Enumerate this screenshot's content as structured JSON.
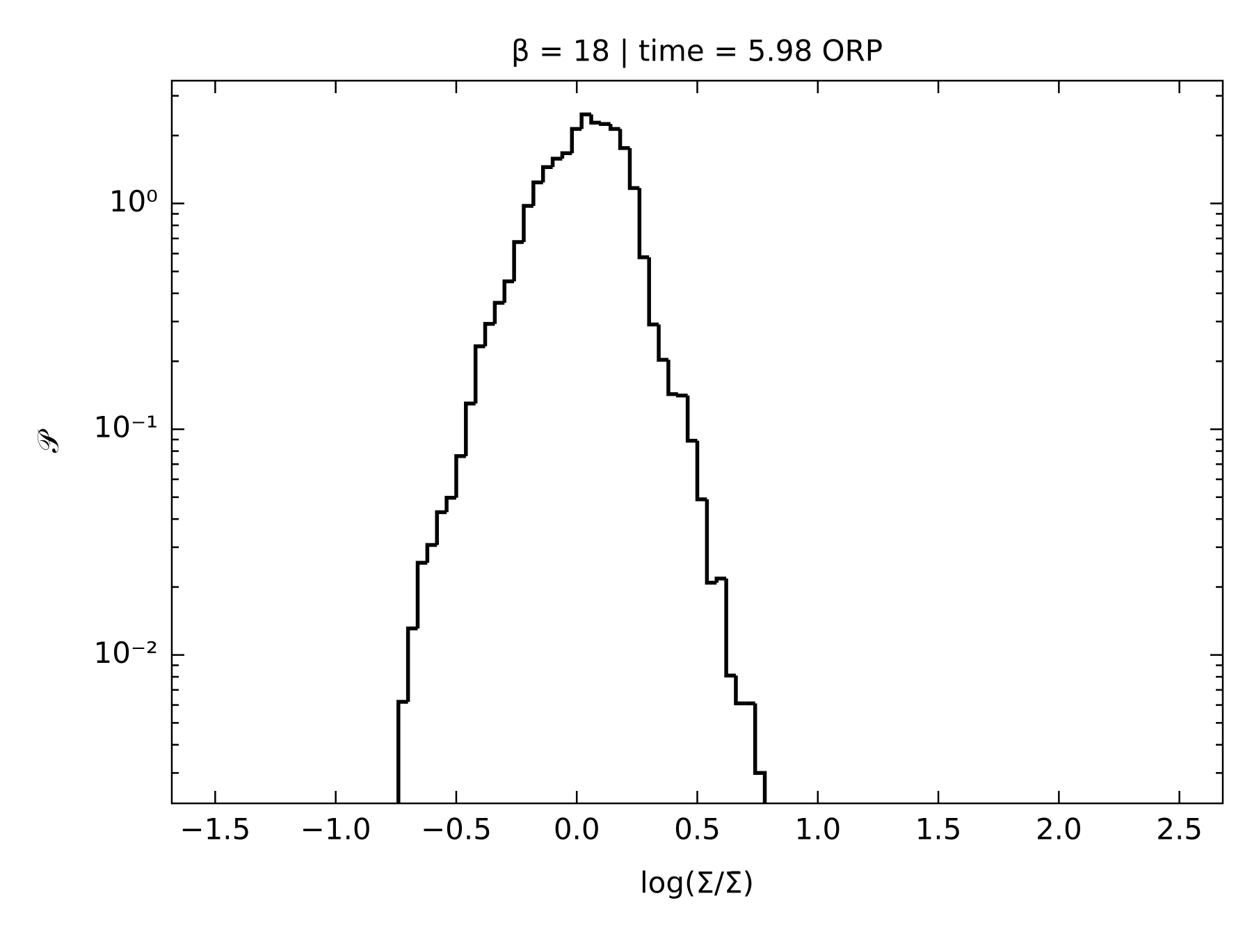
{
  "chart_data": {
    "type": "histogram",
    "title": "β = 18 | time = 5.98 ORP",
    "xlabel": "log(Σ/Σ̄)",
    "ylabel": "𝒫",
    "color": "#000000",
    "log_y": true,
    "bins": [
      -0.74,
      -0.7,
      -0.66,
      -0.62,
      -0.58,
      -0.54,
      -0.5,
      -0.46,
      -0.42,
      -0.38,
      -0.34,
      -0.3,
      -0.26,
      -0.22,
      -0.18,
      -0.14,
      -0.1,
      -0.06,
      -0.02,
      0.02,
      0.06,
      0.1,
      0.14,
      0.18,
      0.22,
      0.26,
      0.3,
      0.34,
      0.38,
      0.42,
      0.46,
      0.5,
      0.54,
      0.58,
      0.62,
      0.66,
      0.7,
      0.74,
      0.78
    ],
    "values": [
      0.0062,
      0.0131,
      0.0256,
      0.0307,
      0.0429,
      0.0497,
      0.076,
      0.13,
      0.233,
      0.293,
      0.363,
      0.452,
      0.675,
      0.976,
      1.24,
      1.45,
      1.58,
      1.67,
      2.14,
      2.48,
      2.28,
      2.25,
      2.14,
      1.76,
      1.17,
      0.578,
      0.291,
      0.203,
      0.143,
      0.141,
      0.0889,
      0.0489,
      0.0209,
      0.0218,
      0.0081,
      0.0061,
      0.0061,
      0.003
    ],
    "xlim": [
      -1.68,
      2.68
    ],
    "ylim": [
      0.0022,
      3.5
    ],
    "xticks": [
      {
        "value": -1.5,
        "label": "−1.5"
      },
      {
        "value": -1.0,
        "label": "−1.0"
      },
      {
        "value": -0.5,
        "label": "−0.5"
      },
      {
        "value": 0.0,
        "label": "0.0"
      },
      {
        "value": 0.5,
        "label": "0.5"
      },
      {
        "value": 1.0,
        "label": "1.0"
      },
      {
        "value": 1.5,
        "label": "1.5"
      },
      {
        "value": 2.0,
        "label": "2.0"
      },
      {
        "value": 2.5,
        "label": "2.5"
      }
    ],
    "yticks": [
      {
        "value": 0.01,
        "label": "10⁻²"
      },
      {
        "value": 0.1,
        "label": "10⁻¹"
      },
      {
        "value": 1,
        "label": "10⁰"
      }
    ],
    "yminorticks": [
      0.003,
      0.004,
      0.005,
      0.006,
      0.007,
      0.008,
      0.009,
      0.02,
      0.03,
      0.04,
      0.05,
      0.06,
      0.07,
      0.08,
      0.09,
      0.2,
      0.3,
      0.4,
      0.5,
      0.6,
      0.7,
      0.8,
      0.9,
      2,
      3
    ]
  }
}
